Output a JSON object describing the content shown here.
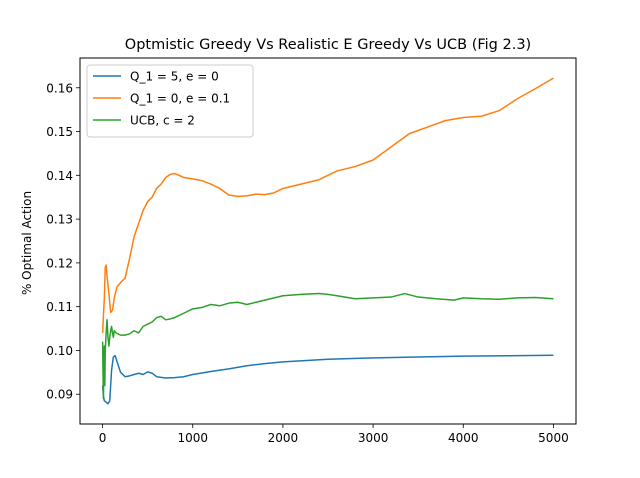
{
  "chart_data": {
    "type": "line",
    "title": "Optmistic Greedy Vs Realistic E Greedy Vs UCB (Fig 2.3)",
    "xlabel": "",
    "ylabel": "% Optimal Action",
    "xlim": [
      -250,
      5250
    ],
    "ylim": [
      0.0832,
      0.1668
    ],
    "xticks": [
      0,
      1000,
      2000,
      3000,
      4000,
      5000
    ],
    "yticks": [
      0.09,
      0.1,
      0.11,
      0.12,
      0.13,
      0.14,
      0.15,
      0.16
    ],
    "ytick_labels": [
      "0.09",
      "0.10",
      "0.11",
      "0.12",
      "0.13",
      "0.14",
      "0.15",
      "0.16"
    ],
    "grid": false,
    "legend_position": "upper-left",
    "series": [
      {
        "name": "Q_1 = 5, e = 0",
        "color": "#1f77b4",
        "points": [
          [
            1,
            0.092
          ],
          [
            10,
            0.0895
          ],
          [
            20,
            0.0885
          ],
          [
            40,
            0.0882
          ],
          [
            60,
            0.0878
          ],
          [
            80,
            0.0885
          ],
          [
            100,
            0.0955
          ],
          [
            120,
            0.0985
          ],
          [
            140,
            0.0988
          ],
          [
            160,
            0.0975
          ],
          [
            200,
            0.095
          ],
          [
            250,
            0.094
          ],
          [
            300,
            0.0942
          ],
          [
            350,
            0.0945
          ],
          [
            400,
            0.0948
          ],
          [
            450,
            0.0945
          ],
          [
            500,
            0.0951
          ],
          [
            550,
            0.0948
          ],
          [
            600,
            0.094
          ],
          [
            700,
            0.0937
          ],
          [
            800,
            0.0938
          ],
          [
            900,
            0.094
          ],
          [
            1000,
            0.0945
          ],
          [
            1200,
            0.0952
          ],
          [
            1400,
            0.0958
          ],
          [
            1600,
            0.0965
          ],
          [
            1800,
            0.097
          ],
          [
            2000,
            0.0974
          ],
          [
            2500,
            0.098
          ],
          [
            3000,
            0.0983
          ],
          [
            3500,
            0.0985
          ],
          [
            4000,
            0.0987
          ],
          [
            4500,
            0.0988
          ],
          [
            5000,
            0.0989
          ]
        ]
      },
      {
        "name": "Q_1 = 0, e = 0.1",
        "color": "#ff7f0e",
        "points": [
          [
            1,
            0.104
          ],
          [
            10,
            0.108
          ],
          [
            20,
            0.112
          ],
          [
            30,
            0.119
          ],
          [
            40,
            0.1195
          ],
          [
            50,
            0.117
          ],
          [
            70,
            0.113
          ],
          [
            90,
            0.1087
          ],
          [
            110,
            0.1092
          ],
          [
            130,
            0.112
          ],
          [
            160,
            0.1145
          ],
          [
            200,
            0.1155
          ],
          [
            250,
            0.1165
          ],
          [
            300,
            0.121
          ],
          [
            350,
            0.126
          ],
          [
            400,
            0.129
          ],
          [
            450,
            0.132
          ],
          [
            500,
            0.134
          ],
          [
            550,
            0.135
          ],
          [
            600,
            0.137
          ],
          [
            650,
            0.138
          ],
          [
            700,
            0.1395
          ],
          [
            750,
            0.1402
          ],
          [
            800,
            0.1404
          ],
          [
            850,
            0.14
          ],
          [
            900,
            0.1395
          ],
          [
            1000,
            0.1392
          ],
          [
            1100,
            0.1388
          ],
          [
            1200,
            0.138
          ],
          [
            1300,
            0.137
          ],
          [
            1400,
            0.1355
          ],
          [
            1500,
            0.1352
          ],
          [
            1600,
            0.1353
          ],
          [
            1700,
            0.1357
          ],
          [
            1800,
            0.1356
          ],
          [
            1900,
            0.136
          ],
          [
            2000,
            0.137
          ],
          [
            2200,
            0.138
          ],
          [
            2400,
            0.139
          ],
          [
            2600,
            0.141
          ],
          [
            2800,
            0.142
          ],
          [
            3000,
            0.1435
          ],
          [
            3200,
            0.1465
          ],
          [
            3400,
            0.1495
          ],
          [
            3600,
            0.151
          ],
          [
            3800,
            0.1525
          ],
          [
            4000,
            0.1532
          ],
          [
            4200,
            0.1535
          ],
          [
            4400,
            0.1548
          ],
          [
            4600,
            0.1575
          ],
          [
            4800,
            0.1598
          ],
          [
            5000,
            0.1622
          ]
        ]
      },
      {
        "name": "UCB, c = 2",
        "color": "#2ca02c",
        "points": [
          [
            1,
            0.102
          ],
          [
            5,
            0.095
          ],
          [
            10,
            0.089
          ],
          [
            15,
            0.098
          ],
          [
            20,
            0.101
          ],
          [
            25,
            0.092
          ],
          [
            30,
            0.1
          ],
          [
            40,
            0.104
          ],
          [
            50,
            0.107
          ],
          [
            60,
            0.103
          ],
          [
            70,
            0.101
          ],
          [
            80,
            0.103
          ],
          [
            90,
            0.1045
          ],
          [
            100,
            0.1055
          ],
          [
            110,
            0.104
          ],
          [
            120,
            0.103
          ],
          [
            130,
            0.1045
          ],
          [
            150,
            0.104
          ],
          [
            200,
            0.1035
          ],
          [
            250,
            0.1035
          ],
          [
            300,
            0.1038
          ],
          [
            350,
            0.1045
          ],
          [
            400,
            0.104
          ],
          [
            450,
            0.1055
          ],
          [
            500,
            0.106
          ],
          [
            550,
            0.1065
          ],
          [
            600,
            0.1075
          ],
          [
            650,
            0.1078
          ],
          [
            700,
            0.107
          ],
          [
            750,
            0.1072
          ],
          [
            800,
            0.1075
          ],
          [
            900,
            0.1085
          ],
          [
            1000,
            0.1095
          ],
          [
            1100,
            0.1098
          ],
          [
            1200,
            0.1105
          ],
          [
            1300,
            0.1102
          ],
          [
            1400,
            0.1108
          ],
          [
            1500,
            0.111
          ],
          [
            1600,
            0.1105
          ],
          [
            1700,
            0.111
          ],
          [
            1800,
            0.1115
          ],
          [
            2000,
            0.1125
          ],
          [
            2200,
            0.1128
          ],
          [
            2400,
            0.113
          ],
          [
            2500,
            0.1128
          ],
          [
            2600,
            0.1125
          ],
          [
            2800,
            0.1118
          ],
          [
            3000,
            0.112
          ],
          [
            3200,
            0.1122
          ],
          [
            3350,
            0.113
          ],
          [
            3500,
            0.1122
          ],
          [
            3700,
            0.1118
          ],
          [
            3900,
            0.1115
          ],
          [
            4000,
            0.112
          ],
          [
            4200,
            0.1118
          ],
          [
            4400,
            0.1117
          ],
          [
            4600,
            0.112
          ],
          [
            4800,
            0.1121
          ],
          [
            5000,
            0.1118
          ]
        ]
      }
    ]
  }
}
